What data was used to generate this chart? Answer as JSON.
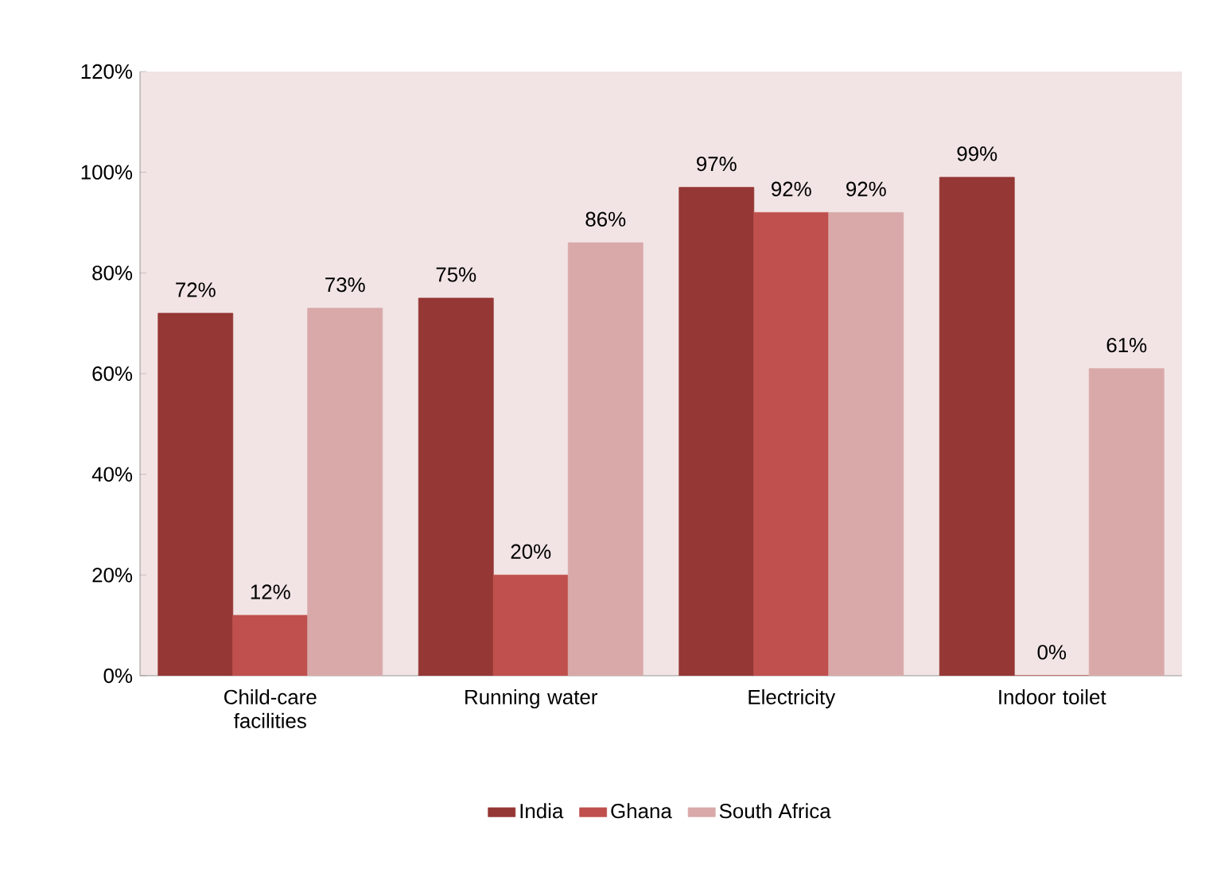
{
  "chart_data": {
    "type": "bar",
    "categories": [
      "Child-care facilities",
      "Running water",
      "Electricity",
      "Indoor toilet"
    ],
    "series": [
      {
        "name": "India",
        "color": "#953735",
        "values": [
          72,
          75,
          97,
          99
        ],
        "value_labels": [
          "72%",
          "75%",
          "97%",
          "99%"
        ]
      },
      {
        "name": "Ghana",
        "color": "#c0504d",
        "values": [
          12,
          20,
          92,
          0
        ],
        "value_labels": [
          "12%",
          "20%",
          "92%",
          "0%"
        ]
      },
      {
        "name": "South Africa",
        "color": "#d9a9a9",
        "values": [
          73,
          86,
          92,
          61
        ],
        "value_labels": [
          "73%",
          "86%",
          "92%",
          "61%"
        ]
      }
    ],
    "ylim": [
      0,
      120
    ],
    "yticks": [
      {
        "value": 0,
        "label": "0%"
      },
      {
        "value": 20,
        "label": "20%"
      },
      {
        "value": 40,
        "label": "40%"
      },
      {
        "value": 60,
        "label": "60%"
      },
      {
        "value": 80,
        "label": "80%"
      },
      {
        "value": 100,
        "label": "100%"
      },
      {
        "value": 120,
        "label": "120%"
      }
    ],
    "grid": false,
    "legend": "bottom"
  }
}
